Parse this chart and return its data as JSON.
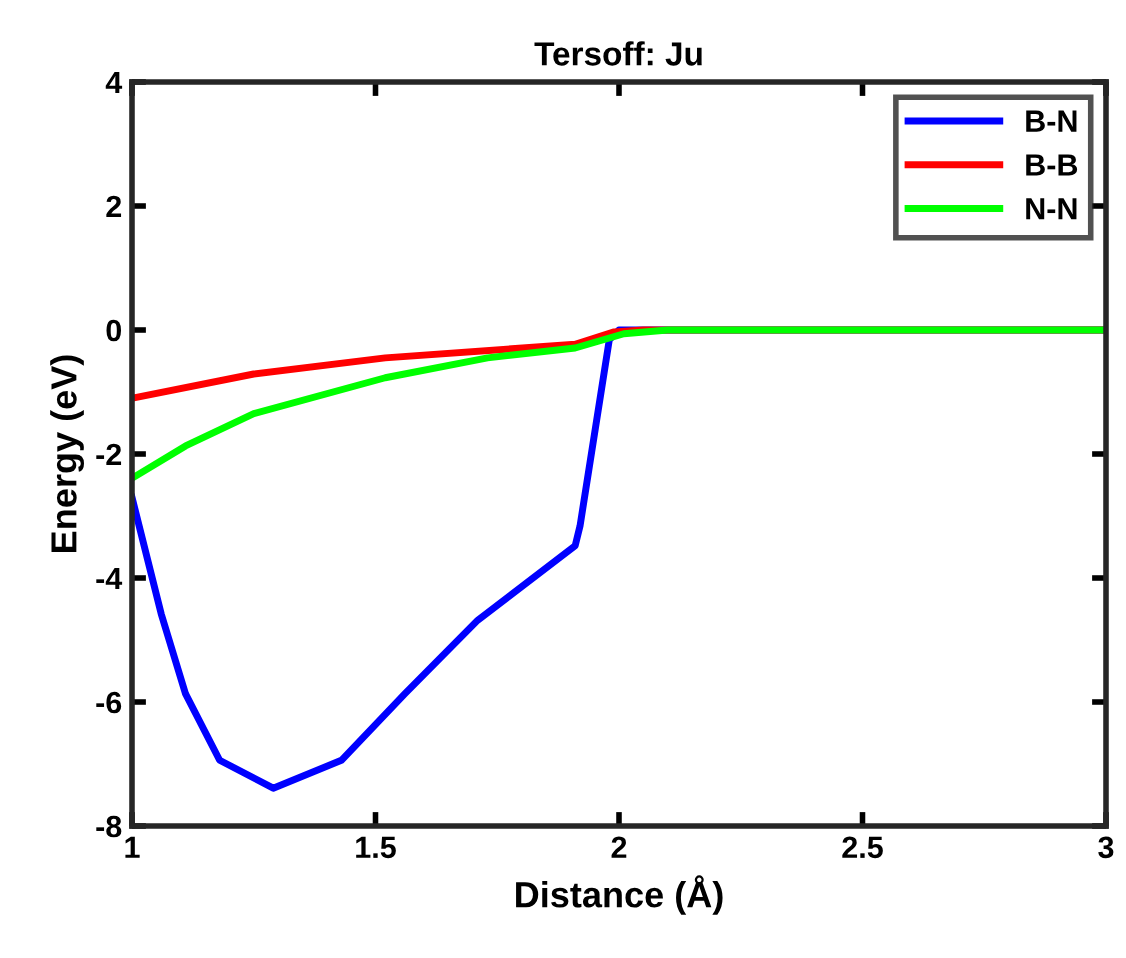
{
  "chart_data": {
    "type": "line",
    "title": "Tersoff: Ju",
    "xlabel": "Distance (Å)",
    "ylabel": "Energy (eV)",
    "xlim": [
      1,
      3
    ],
    "ylim": [
      -8,
      4
    ],
    "xticks": [
      1,
      1.5,
      2,
      2.5,
      3
    ],
    "yticks": [
      -8,
      -6,
      -4,
      -2,
      0,
      2,
      4
    ],
    "grid": false,
    "legend": "top right",
    "line_style": "solid",
    "marker": "none",
    "series": [
      {
        "name": "B-N",
        "color": "#0000ff",
        "x": [
          1,
          1.06,
          1.11,
          1.18,
          1.29,
          1.43,
          1.56,
          1.71,
          1.91,
          1.92,
          1.98,
          2.0,
          2.5,
          3
        ],
        "values": [
          -2.7,
          -4.58,
          -5.87,
          -6.94,
          -7.39,
          -6.94,
          -5.87,
          -4.68,
          -3.48,
          -3.16,
          -0.16,
          0,
          0,
          0
        ]
      },
      {
        "name": "B-B",
        "color": "#ff0000",
        "x": [
          1,
          1.25,
          1.52,
          1.91,
          1.99,
          2.05,
          2.5,
          3
        ],
        "values": [
          -1.1,
          -0.71,
          -0.45,
          -0.23,
          -0.03,
          0,
          0,
          0
        ]
      },
      {
        "name": "N-N",
        "color": "#00ff00",
        "x": [
          1,
          1.11,
          1.25,
          1.52,
          1.73,
          1.91,
          2.01,
          2.1,
          2.5,
          3
        ],
        "values": [
          -2.39,
          -1.87,
          -1.35,
          -0.77,
          -0.45,
          -0.29,
          -0.06,
          0,
          0,
          0
        ]
      }
    ]
  }
}
